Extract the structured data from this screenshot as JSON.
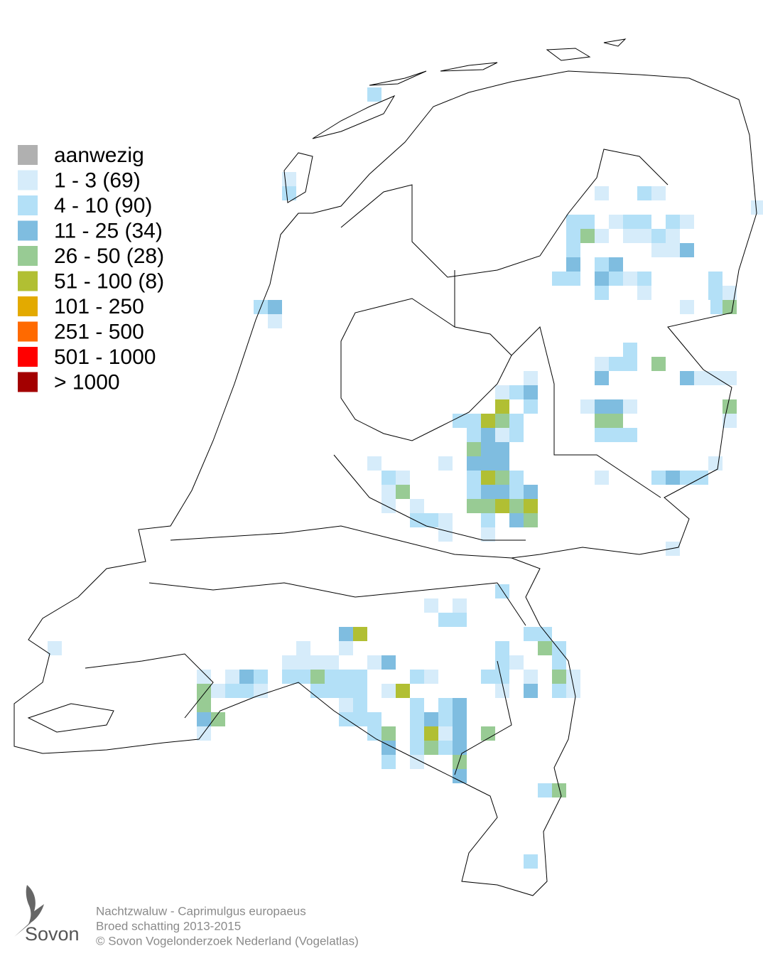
{
  "legend": {
    "items": [
      {
        "label": "aanwezig",
        "color": "#b0b0b0"
      },
      {
        "label": "1 - 3 (69)",
        "color": "#d6ecfa"
      },
      {
        "label": "4 - 10 (90)",
        "color": "#b3e0f7"
      },
      {
        "label": "11 - 25 (34)",
        "color": "#7fbde0"
      },
      {
        "label": "26 - 50 (28)",
        "color": "#98cb94"
      },
      {
        "label": "51 - 100 (8)",
        "color": "#b1bf33"
      },
      {
        "label": "101 - 250",
        "color": "#e3aa00"
      },
      {
        "label": "251 - 500",
        "color": "#ff6a00"
      },
      {
        "label": "501 - 1000",
        "color": "#ff0000"
      },
      {
        "label": "> 1000",
        "color": "#a30000"
      }
    ]
  },
  "footer": {
    "lines": [
      "Nachtzwaluw - Caprimulgus europaeus",
      "Broed schatting 2013-2015",
      "© Sovon Vogelonderzoek Nederland (Vogelatlas)"
    ],
    "logo": "Sovon"
  }
}
